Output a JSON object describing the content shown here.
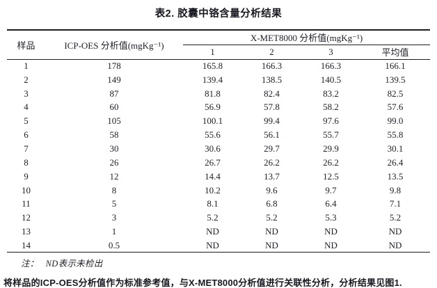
{
  "title": "表2. 胶囊中铬含量分析结果",
  "table": {
    "headers": {
      "sample": "样品",
      "icp": "ICP-OES 分析值(mgKg⁻¹)",
      "xmet_group": "X-MET8000 分析值(mgKg⁻¹)",
      "subcols": [
        "1",
        "2",
        "3",
        "平均值"
      ]
    },
    "rows": [
      {
        "sample": "1",
        "icp": "178",
        "m1": "165.8",
        "m2": "166.3",
        "m3": "166.3",
        "avg": "166.1"
      },
      {
        "sample": "2",
        "icp": "149",
        "m1": "139.4",
        "m2": "138.5",
        "m3": "140.5",
        "avg": "139.5"
      },
      {
        "sample": "3",
        "icp": "87",
        "m1": "81.8",
        "m2": "82.4",
        "m3": "83.2",
        "avg": "82.5"
      },
      {
        "sample": "4",
        "icp": "60",
        "m1": "56.9",
        "m2": "57.8",
        "m3": "58.2",
        "avg": "57.6"
      },
      {
        "sample": "5",
        "icp": "105",
        "m1": "100.1",
        "m2": "99.4",
        "m3": "97.6",
        "avg": "99.0"
      },
      {
        "sample": "6",
        "icp": "58",
        "m1": "55.6",
        "m2": "56.1",
        "m3": "55.7",
        "avg": "55.8"
      },
      {
        "sample": "7",
        "icp": "30",
        "m1": "30.6",
        "m2": "29.7",
        "m3": "29.9",
        "avg": "30.1"
      },
      {
        "sample": "8",
        "icp": "26",
        "m1": "26.7",
        "m2": "26.2",
        "m3": "26.2",
        "avg": "26.4"
      },
      {
        "sample": "9",
        "icp": "12",
        "m1": "14.4",
        "m2": "13.7",
        "m3": "12.5",
        "avg": "13.5"
      },
      {
        "sample": "10",
        "icp": "8",
        "m1": "10.2",
        "m2": "9.6",
        "m3": "9.7",
        "avg": "9.8"
      },
      {
        "sample": "11",
        "icp": "5",
        "m1": "8.1",
        "m2": "6.8",
        "m3": "6.4",
        "avg": "7.1"
      },
      {
        "sample": "12",
        "icp": "3",
        "m1": "5.2",
        "m2": "5.2",
        "m3": "5.3",
        "avg": "5.2"
      },
      {
        "sample": "13",
        "icp": "1",
        "m1": "ND",
        "m2": "ND",
        "m3": "ND",
        "avg": "ND"
      },
      {
        "sample": "14",
        "icp": "0.5",
        "m1": "ND",
        "m2": "ND",
        "m3": "ND",
        "avg": "ND"
      }
    ],
    "note_label": "注：",
    "note_text": "ND表示未检出"
  },
  "footer_paragraph": "将样品的ICP-OES分析值作为标准参考值，与X-MET8000分析值进行关联性分析，分析结果见图1.",
  "colors": {
    "text": "#20222a",
    "rule": "#1b1c22",
    "background": "#ffffff"
  },
  "chart_data": {
    "type": "table",
    "title": "表2. 胶囊中铬含量分析结果",
    "columns": [
      "样品",
      "ICP-OES 分析值(mgKg⁻¹)",
      "X-MET8000 分析值(mgKg⁻¹) 1",
      "X-MET8000 分析值(mgKg⁻¹) 2",
      "X-MET8000 分析值(mgKg⁻¹) 3",
      "X-MET8000 平均值"
    ],
    "values": [
      [
        1,
        178,
        165.8,
        166.3,
        166.3,
        166.1
      ],
      [
        2,
        149,
        139.4,
        138.5,
        140.5,
        139.5
      ],
      [
        3,
        87,
        81.8,
        82.4,
        83.2,
        82.5
      ],
      [
        4,
        60,
        56.9,
        57.8,
        58.2,
        57.6
      ],
      [
        5,
        105,
        100.1,
        99.4,
        97.6,
        99.0
      ],
      [
        6,
        58,
        55.6,
        56.1,
        55.7,
        55.8
      ],
      [
        7,
        30,
        30.6,
        29.7,
        29.9,
        30.1
      ],
      [
        8,
        26,
        26.7,
        26.2,
        26.2,
        26.4
      ],
      [
        9,
        12,
        14.4,
        13.7,
        12.5,
        13.5
      ],
      [
        10,
        8,
        10.2,
        9.6,
        9.7,
        9.8
      ],
      [
        11,
        5,
        8.1,
        6.8,
        6.4,
        7.1
      ],
      [
        12,
        3,
        5.2,
        5.2,
        5.3,
        5.2
      ],
      [
        13,
        1,
        "ND",
        "ND",
        "ND",
        "ND"
      ],
      [
        14,
        0.5,
        "ND",
        "ND",
        "ND",
        "ND"
      ]
    ],
    "note": "注： ND表示未检出"
  }
}
